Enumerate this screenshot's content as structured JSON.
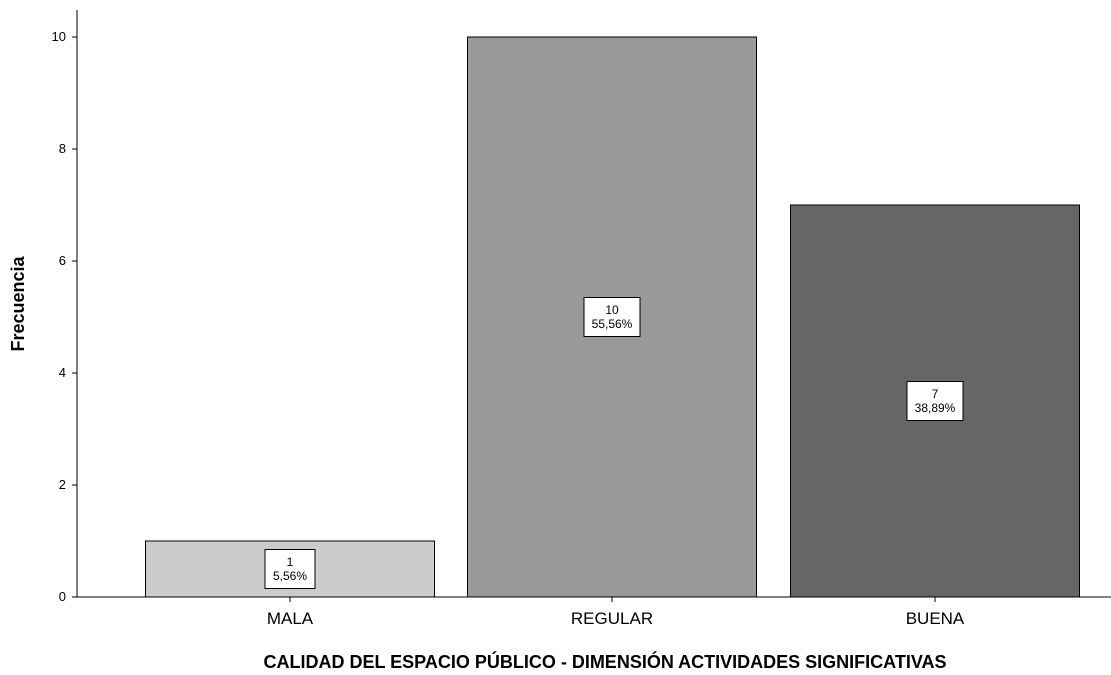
{
  "chart_data": {
    "type": "bar",
    "title": "",
    "xlabel": "CALIDAD DEL ESPACIO PÚBLICO - DIMENSIÓN ACTIVIDADES SIGNIFICATIVAS",
    "ylabel": "Frecuencia",
    "categories": [
      "MALA",
      "REGULAR",
      "BUENA"
    ],
    "values": [
      1,
      10,
      7
    ],
    "data_labels": [
      {
        "count": "1",
        "percent": "5,56%"
      },
      {
        "count": "10",
        "percent": "55,56%"
      },
      {
        "count": "7",
        "percent": "38,89%"
      }
    ],
    "colors": [
      "#cccccc",
      "#999999",
      "#666666"
    ],
    "ylim": [
      0,
      10.5
    ],
    "yticks": [
      0,
      2,
      4,
      6,
      8,
      10
    ],
    "ytick_labels": [
      "0",
      "2",
      "4",
      "6",
      "8",
      "10"
    ],
    "grid": false,
    "legend": "none"
  }
}
